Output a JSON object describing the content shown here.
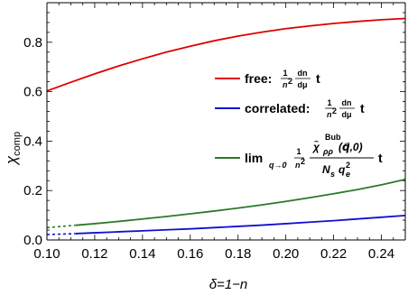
{
  "chart_data": {
    "type": "line",
    "xlabel": "δ=1−n",
    "ylabel": "χcomp",
    "ylabel_main": "χ",
    "ylabel_sub": "comp",
    "xlim": [
      0.1,
      0.25
    ],
    "ylim": [
      0.0,
      0.96
    ],
    "xticks": [
      "0.10",
      "0.12",
      "0.14",
      "0.16",
      "0.18",
      "0.20",
      "0.22",
      "0.24"
    ],
    "yticks": [
      "0.0",
      "0.2",
      "0.4",
      "0.6",
      "0.8"
    ],
    "legend_position": "right",
    "series": [
      {
        "name": "free",
        "color": "#e00000",
        "x": [
          0.1,
          0.11,
          0.12,
          0.13,
          0.14,
          0.15,
          0.16,
          0.17,
          0.18,
          0.19,
          0.2,
          0.21,
          0.22,
          0.23,
          0.24,
          0.25
        ],
        "y": [
          0.603,
          0.638,
          0.672,
          0.704,
          0.733,
          0.76,
          0.784,
          0.806,
          0.825,
          0.841,
          0.855,
          0.866,
          0.876,
          0.884,
          0.891,
          0.896
        ]
      },
      {
        "name": "correlated",
        "color": "#1010d0",
        "dashed_until": 0.112,
        "x": [
          0.1,
          0.11,
          0.12,
          0.13,
          0.14,
          0.15,
          0.16,
          0.17,
          0.18,
          0.19,
          0.2,
          0.21,
          0.22,
          0.23,
          0.24,
          0.25
        ],
        "y": [
          0.022,
          0.025,
          0.029,
          0.033,
          0.037,
          0.041,
          0.045,
          0.05,
          0.055,
          0.06,
          0.066,
          0.072,
          0.078,
          0.085,
          0.092,
          0.099
        ]
      },
      {
        "name": "lim",
        "color": "#2a7a2a",
        "dashed_until": 0.112,
        "x": [
          0.1,
          0.11,
          0.12,
          0.13,
          0.14,
          0.15,
          0.16,
          0.17,
          0.18,
          0.19,
          0.2,
          0.21,
          0.22,
          0.23,
          0.24,
          0.25
        ],
        "y": [
          0.05,
          0.058,
          0.066,
          0.075,
          0.085,
          0.095,
          0.106,
          0.117,
          0.129,
          0.142,
          0.156,
          0.171,
          0.187,
          0.204,
          0.223,
          0.245
        ]
      }
    ],
    "legend": {
      "free": {
        "label": "free:",
        "frac_num": "1",
        "frac_den_base": "n",
        "frac_den_exp": "2",
        "dn_num": "dn",
        "dn_den": "dμ",
        "tail": "t"
      },
      "correlated": {
        "label": "correlated:",
        "frac_num": "1",
        "frac_den_base": "n",
        "frac_den_exp": "2",
        "dn_num": "dn",
        "dn_den": "dμ",
        "tail": "t"
      },
      "lim": {
        "label": "lim",
        "sub": "q→0",
        "frac_num": "1",
        "frac_den_base": "n",
        "frac_den_exp": "2",
        "num_main": "χ̃",
        "num_sub": "ρρ",
        "num_sup": "Bub",
        "num_args": "(q⃗,0)",
        "den_main": "N",
        "den_sub": "s",
        "den_q": "q",
        "den_q_sub": "e",
        "den_q_sup": "2",
        "tail": "t"
      }
    }
  }
}
